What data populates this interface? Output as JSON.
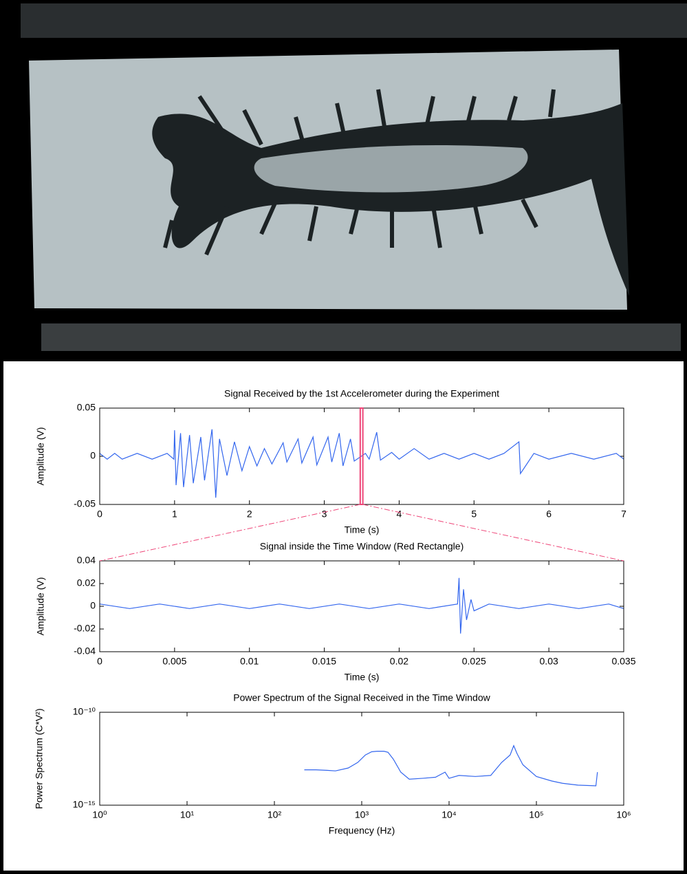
{
  "chart_data": [
    {
      "type": "line",
      "title": "Signal Received by the 1st Accelerometer during the Experiment",
      "x_label": "Time (s)",
      "y_label": "Amplitude (V)",
      "color": "#3366ee",
      "x": [
        0,
        0.1,
        0.2,
        0.3,
        0.5,
        0.7,
        0.9,
        0.99,
        1.0,
        1.02,
        1.08,
        1.12,
        1.2,
        1.25,
        1.35,
        1.4,
        1.5,
        1.55,
        1.6,
        1.7,
        1.8,
        1.9,
        2.0,
        2.1,
        2.2,
        2.3,
        2.45,
        2.5,
        2.65,
        2.7,
        2.85,
        2.9,
        3.05,
        3.1,
        3.2,
        3.25,
        3.35,
        3.4,
        3.55,
        3.6,
        3.7,
        3.75,
        3.9,
        4.0,
        4.2,
        4.4,
        4.6,
        4.8,
        5.0,
        5.2,
        5.4,
        5.6,
        5.62,
        5.8,
        6.0,
        6.3,
        6.6,
        6.9,
        7.0
      ],
      "values": [
        0.003,
        -0.003,
        0.003,
        -0.003,
        0.003,
        -0.003,
        0.003,
        -0.003,
        0.027,
        -0.03,
        0.024,
        -0.032,
        0.022,
        -0.028,
        0.02,
        -0.025,
        0.028,
        -0.043,
        0.018,
        -0.02,
        0.015,
        -0.015,
        0.01,
        -0.01,
        0.008,
        -0.008,
        0.014,
        -0.006,
        0.018,
        -0.007,
        0.02,
        -0.009,
        0.02,
        -0.006,
        0.024,
        -0.01,
        0.018,
        -0.005,
        0.003,
        -0.003,
        0.025,
        -0.004,
        0.004,
        -0.003,
        0.008,
        -0.003,
        0.003,
        -0.003,
        0.003,
        -0.003,
        0.003,
        0.015,
        -0.018,
        0.003,
        -0.003,
        0.003,
        -0.003,
        0.003,
        -0.003
      ],
      "highlight_window": [
        3.48,
        3.515
      ],
      "highlight_color": "#ee4477",
      "xlim": [
        0,
        7
      ],
      "xticks": [
        0,
        1,
        2,
        3,
        4,
        5,
        6,
        7
      ],
      "ylim": [
        -0.05,
        0.05
      ],
      "yticks": [
        -0.05,
        0,
        0.05
      ]
    },
    {
      "type": "line",
      "title": "Signal inside the Time Window (Red Rectangle)",
      "x_label": "Time (s)",
      "y_label": "Amplitude (V)",
      "color": "#3366ee",
      "x": [
        0,
        0.002,
        0.004,
        0.006,
        0.008,
        0.01,
        0.012,
        0.014,
        0.016,
        0.018,
        0.02,
        0.022,
        0.0239,
        0.024,
        0.0241,
        0.0243,
        0.0245,
        0.0248,
        0.025,
        0.026,
        0.028,
        0.03,
        0.032,
        0.034,
        0.035
      ],
      "values": [
        0.002,
        -0.002,
        0.002,
        -0.002,
        0.002,
        -0.002,
        0.002,
        -0.002,
        0.002,
        -0.002,
        0.002,
        -0.002,
        0.002,
        0.025,
        -0.024,
        0.015,
        -0.012,
        0.006,
        -0.004,
        0.002,
        -0.002,
        0.002,
        -0.002,
        0.002,
        -0.002
      ],
      "xlim": [
        0,
        0.035
      ],
      "xticks": [
        0,
        0.005,
        0.01,
        0.015,
        0.02,
        0.025,
        0.03,
        0.035
      ],
      "ylim": [
        -0.04,
        0.04
      ],
      "yticks": [
        -0.04,
        -0.02,
        0,
        0.02,
        0.04
      ]
    },
    {
      "type": "line",
      "title": "Power Spectrum of the Signal Received in the Time Window",
      "x_label": "Frequency (Hz)",
      "y_label": "Power Spectrum (C*V²)",
      "color": "#3366ee",
      "x_scale": "log",
      "y_scale": "log",
      "x": [
        220,
        300,
        400,
        500,
        700,
        900,
        1100,
        1300,
        1500,
        1800,
        2000,
        2300,
        2800,
        3500,
        5000,
        7000,
        9000,
        10000,
        13000,
        20000,
        30000,
        40000,
        50000,
        55000,
        60000,
        70000,
        100000,
        150000,
        200000,
        300000,
        480000,
        500000
      ],
      "values": [
        8e-14,
        8e-14,
        7.5e-14,
        7e-14,
        1e-13,
        2e-13,
        5e-13,
        7.5e-13,
        8e-13,
        8e-13,
        7e-13,
        3e-13,
        6e-14,
        2.5e-14,
        2.8e-14,
        3.2e-14,
        6e-14,
        2.8e-14,
        4e-14,
        3.5e-14,
        4e-14,
        2e-13,
        5e-13,
        1.6e-12,
        6e-13,
        1.5e-13,
        3.5e-14,
        2e-14,
        1.5e-14,
        1.2e-14,
        1.1e-14,
        6e-14
      ],
      "xlim": [
        1,
        1000000
      ],
      "xticks": [
        {
          "value": 1,
          "label": "10⁰"
        },
        {
          "value": 10,
          "label": "10¹"
        },
        {
          "value": 100,
          "label": "10²"
        },
        {
          "value": 1000,
          "label": "10³"
        },
        {
          "value": 10000,
          "label": "10⁴"
        },
        {
          "value": 100000,
          "label": "10⁵"
        },
        {
          "value": 1000000,
          "label": "10⁶"
        }
      ],
      "ylim": [
        1e-15,
        1e-10
      ],
      "yticks": [
        {
          "value": 1e-15,
          "label": "10⁻¹⁵"
        },
        {
          "value": 1e-10,
          "label": "10⁻¹⁰"
        }
      ]
    }
  ]
}
